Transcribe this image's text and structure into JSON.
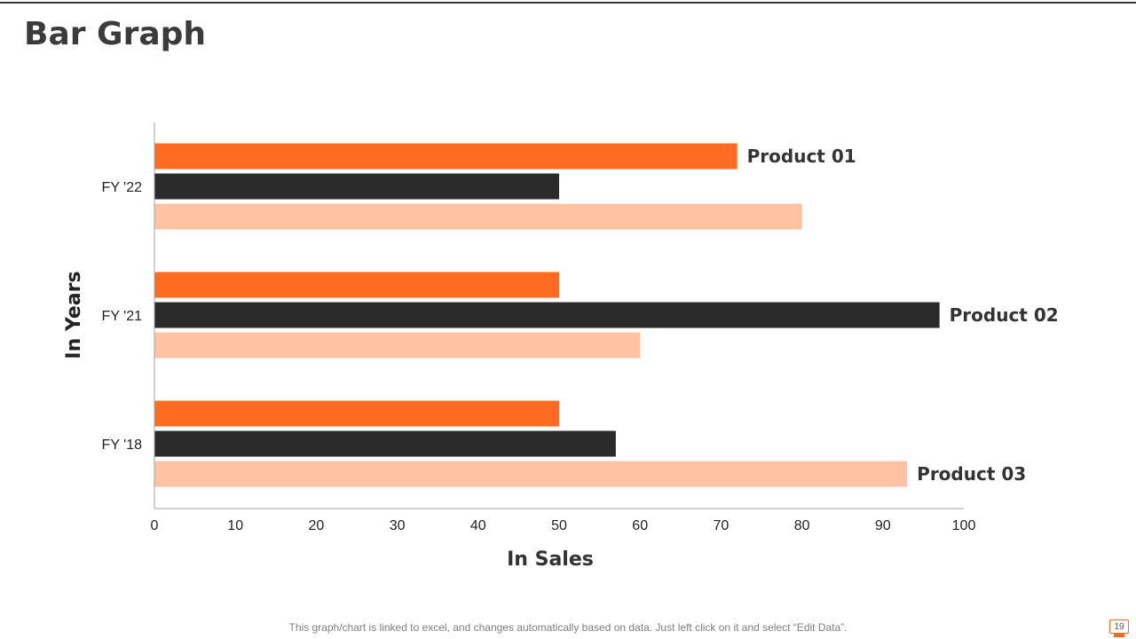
{
  "slide": {
    "title": "Bar Graph",
    "footer_note": "This graph/chart is linked to excel, and changes automatically based on data. Just left click on it and select “Edit Data”.",
    "page_number": "19"
  },
  "colors": {
    "product_01": "#ff6b21",
    "product_02": "#2a2a2a",
    "product_03": "#ffc3a3",
    "axis": "#a6a6a6",
    "text": "#222222"
  },
  "chart_data": {
    "type": "bar",
    "orientation": "horizontal",
    "categories": [
      "FY '22",
      "FY '21",
      "FY '18"
    ],
    "series": [
      {
        "name": "Product 01",
        "values": [
          72,
          50,
          50
        ]
      },
      {
        "name": "Product 02",
        "values": [
          50,
          97,
          57
        ]
      },
      {
        "name": "Product 03",
        "values": [
          80,
          60,
          93
        ]
      }
    ],
    "xlabel": "In Sales",
    "ylabel": "In Years",
    "xlim": [
      0,
      100
    ],
    "xticks": [
      "0",
      "10",
      "20",
      "30",
      "40",
      "50",
      "60",
      "70",
      "80",
      "90",
      "100"
    ],
    "grid": false,
    "legend": "none",
    "annotations": [
      {
        "text": "Product 01",
        "category": "FY '22",
        "series": "Product 01"
      },
      {
        "text": "Product 02",
        "category": "FY '21",
        "series": "Product 02"
      },
      {
        "text": "Product 03",
        "category": "FY '18",
        "series": "Product 03"
      }
    ]
  }
}
